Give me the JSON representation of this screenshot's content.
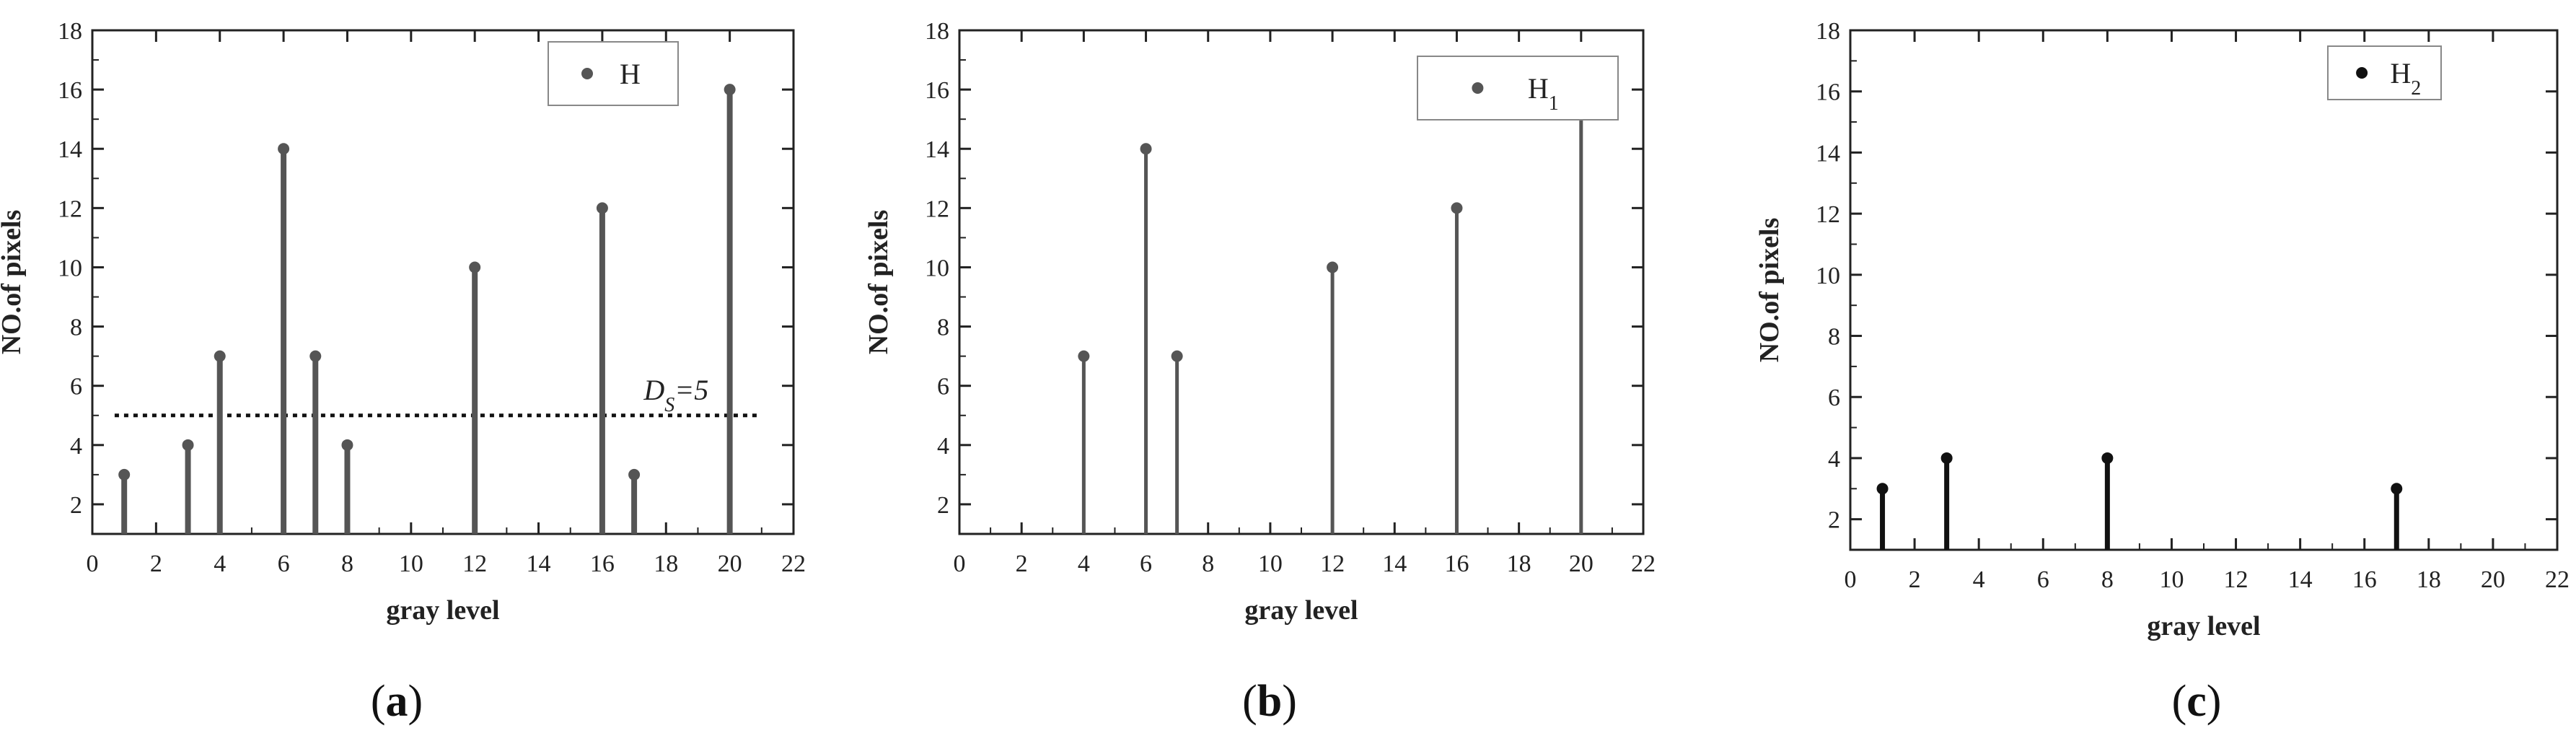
{
  "figure": {
    "panels": [
      {
        "panel_label": "(a)",
        "chart_data": {
          "type": "stem",
          "xlabel": "gray level",
          "ylabel": "NO.of pixels",
          "xlim": [
            0,
            22
          ],
          "ylim": [
            1,
            18
          ],
          "xticks": [
            "0",
            "2",
            "4",
            "6",
            "8",
            "10",
            "12",
            "14",
            "16",
            "18",
            "20",
            "22"
          ],
          "yticks": [
            "2",
            "4",
            "6",
            "8",
            "10",
            "12",
            "14",
            "16",
            "18"
          ],
          "series": [
            {
              "name": "H",
              "color": "#555555",
              "points": [
                {
                  "x": 1,
                  "y": 3
                },
                {
                  "x": 3,
                  "y": 4
                },
                {
                  "x": 4,
                  "y": 7
                },
                {
                  "x": 6,
                  "y": 14
                },
                {
                  "x": 7,
                  "y": 7
                },
                {
                  "x": 8,
                  "y": 4
                },
                {
                  "x": 12,
                  "y": 10
                },
                {
                  "x": 16,
                  "y": 12
                },
                {
                  "x": 17,
                  "y": 3
                },
                {
                  "x": 20,
                  "y": 16
                }
              ]
            }
          ],
          "threshold": {
            "y": 5,
            "label": "D_S=5",
            "style": "dotted"
          },
          "legend_position": "top-right"
        }
      },
      {
        "panel_label": "(b)",
        "chart_data": {
          "type": "stem",
          "xlabel": "gray level",
          "ylabel": "NO.of pixels",
          "xlim": [
            0,
            22
          ],
          "ylim": [
            1,
            18
          ],
          "xticks": [
            "0",
            "2",
            "4",
            "6",
            "8",
            "10",
            "12",
            "14",
            "16",
            "18",
            "20",
            "22"
          ],
          "yticks": [
            "2",
            "4",
            "6",
            "8",
            "10",
            "12",
            "14",
            "16",
            "18"
          ],
          "series": [
            {
              "name": "H1",
              "color": "#555555",
              "points": [
                {
                  "x": 4,
                  "y": 7
                },
                {
                  "x": 6,
                  "y": 14
                },
                {
                  "x": 7,
                  "y": 7
                },
                {
                  "x": 12,
                  "y": 10
                },
                {
                  "x": 16,
                  "y": 12
                },
                {
                  "x": 20,
                  "y": 16
                }
              ]
            }
          ],
          "legend_position": "top-right"
        }
      },
      {
        "panel_label": "(c)",
        "chart_data": {
          "type": "stem",
          "xlabel": "gray level",
          "ylabel": "NO.of pixels",
          "xlim": [
            0,
            22
          ],
          "ylim": [
            1,
            18
          ],
          "xticks": [
            "0",
            "2",
            "4",
            "6",
            "8",
            "10",
            "12",
            "14",
            "16",
            "18",
            "20",
            "22"
          ],
          "yticks": [
            "2",
            "4",
            "6",
            "8",
            "10",
            "12",
            "14",
            "16",
            "18"
          ],
          "series": [
            {
              "name": "H2",
              "color": "#111111",
              "points": [
                {
                  "x": 1,
                  "y": 3
                },
                {
                  "x": 3,
                  "y": 4
                },
                {
                  "x": 8,
                  "y": 4
                },
                {
                  "x": 17,
                  "y": 3
                }
              ]
            }
          ],
          "legend_position": "top-right"
        }
      }
    ]
  }
}
